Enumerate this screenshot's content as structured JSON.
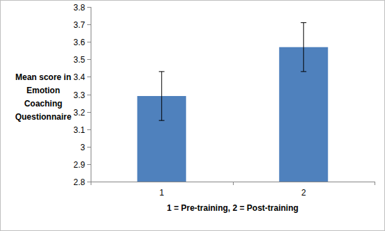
{
  "chart_data": {
    "type": "bar",
    "y_label": "Mean score in Emotion Coaching Questionnaire",
    "x_label": "1 = Pre-training, 2 = Post-training",
    "categories": [
      "1",
      "2"
    ],
    "values": [
      3.29,
      3.57
    ],
    "errors": [
      0.14,
      0.14
    ],
    "color": "#4f81bd",
    "ylim": [
      2.8,
      3.8
    ],
    "yticks": [
      2.8,
      2.9,
      3,
      3.1,
      3.2,
      3.3,
      3.4,
      3.5,
      3.6,
      3.7,
      3.8
    ],
    "grid": false
  }
}
